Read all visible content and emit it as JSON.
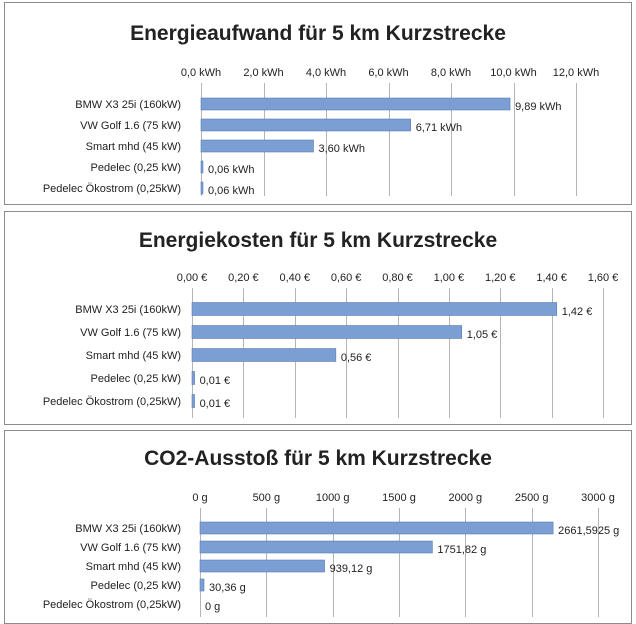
{
  "chart_data": [
    {
      "type": "bar",
      "orientation": "horizontal",
      "title": "Energieaufwand für 5 km Kurzstrecke",
      "categories": [
        "BMW X3 25i  (160kW)",
        "VW Golf 1.6 (75 kW)",
        "Smart mhd (45 kW)",
        "Pedelec (0,25 kW)",
        "Pedelec Ökostrom (0,25kW)"
      ],
      "values": [
        9.89,
        6.71,
        3.6,
        0.06,
        0.06
      ],
      "data_labels": [
        "9,89 kWh",
        "6,71 kWh",
        "3,60 kWh",
        "0,06 kWh",
        "0,06 kWh"
      ],
      "xlim": [
        0,
        12
      ],
      "ticks": [
        0,
        2,
        4,
        6,
        8,
        10,
        12
      ],
      "tick_labels": [
        "0,0 kWh",
        "2,0 kWh",
        "4,0 kWh",
        "6,0 kWh",
        "8,0 kWh",
        "10,0 kWh",
        "12,0 kWh"
      ],
      "axis_position": "top",
      "grid": true,
      "bar_color": "#7b9fd2"
    },
    {
      "type": "bar",
      "orientation": "horizontal",
      "title": "Energiekosten für 5 km Kurzstrecke",
      "categories": [
        "BMW X3 25i  (160kW)",
        "VW Golf 1.6 (75 kW)",
        "Smart mhd (45 kW)",
        "Pedelec (0,25 kW)",
        "Pedelec Ökostrom (0,25kW)"
      ],
      "values": [
        1.42,
        1.05,
        0.56,
        0.01,
        0.01
      ],
      "data_labels": [
        "1,42 €",
        "1,05 €",
        "0,56 €",
        "0,01 €",
        "0,01 €"
      ],
      "xlim": [
        0,
        1.6
      ],
      "ticks": [
        0,
        0.2,
        0.4,
        0.6,
        0.8,
        1.0,
        1.2,
        1.4,
        1.6
      ],
      "tick_labels": [
        "0,00 €",
        "0,20 €",
        "0,40 €",
        "0,60 €",
        "0,80 €",
        "1,00 €",
        "1,20 €",
        "1,40 €",
        "1,60 €"
      ],
      "axis_position": "top",
      "grid": true,
      "bar_color": "#7b9fd2"
    },
    {
      "type": "bar",
      "orientation": "horizontal",
      "title": "CO2-Ausstoß für 5 km Kurzstrecke",
      "categories": [
        "BMW X3 25i  (160kW)",
        "VW Golf 1.6 (75 kW)",
        "Smart mhd (45 kW)",
        "Pedelec (0,25 kW)",
        "Pedelec Ökostrom (0,25kW)"
      ],
      "values": [
        2661.5925,
        1751.82,
        939.12,
        30.36,
        0
      ],
      "data_labels": [
        "2661,5925 g",
        "1751,82 g",
        "939,12 g",
        "30,36 g",
        "0 g"
      ],
      "xlim": [
        0,
        3000
      ],
      "ticks": [
        0,
        500,
        1000,
        1500,
        2000,
        2500,
        3000
      ],
      "tick_labels": [
        "0 g",
        "500 g",
        "1000 g",
        "1500 g",
        "2000 g",
        "2500 g",
        "3000 g"
      ],
      "axis_position": "top",
      "grid": true,
      "bar_color": "#7b9fd2"
    }
  ]
}
